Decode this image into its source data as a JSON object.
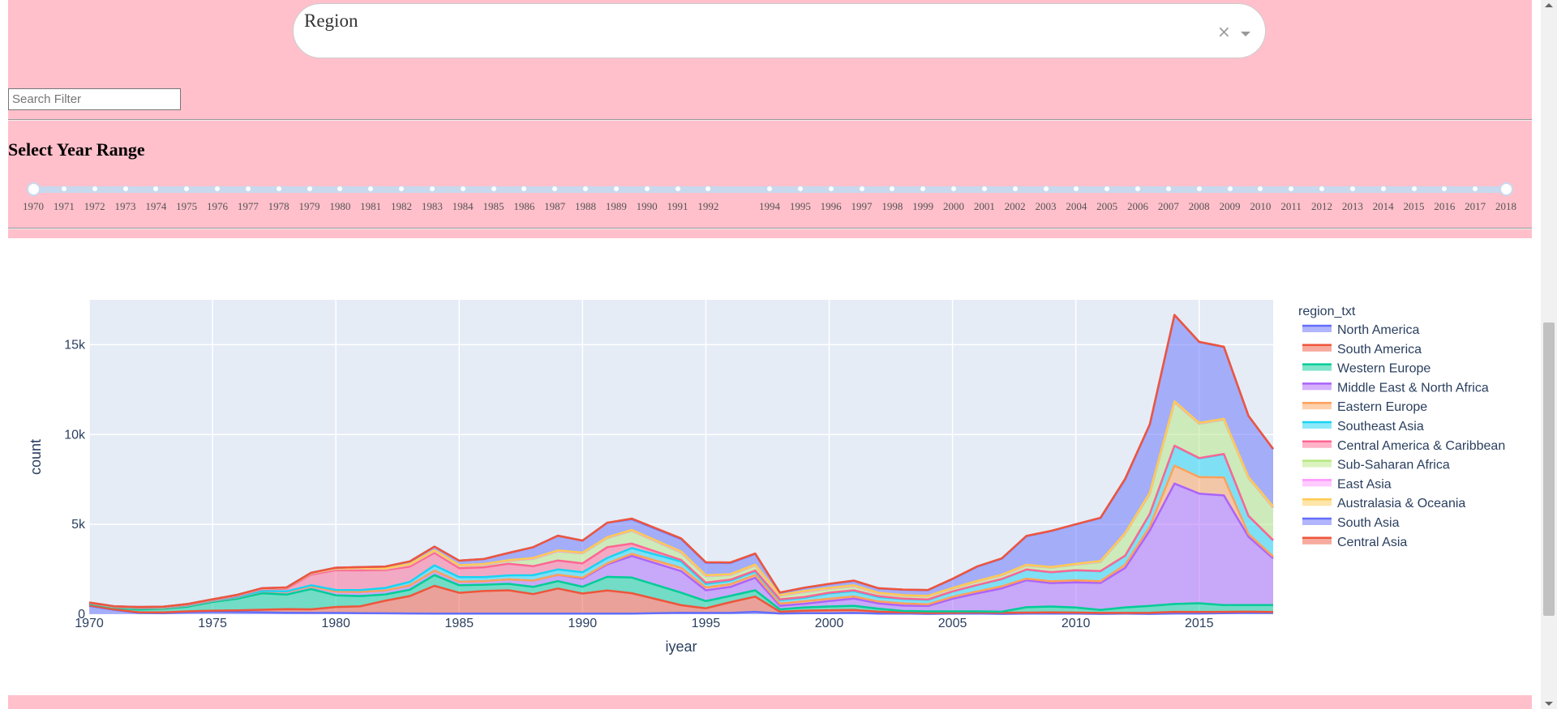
{
  "region_dropdown": {
    "placeholder": "Region",
    "clear_icon": "×",
    "chevron_icon": "chevron-down-icon"
  },
  "search": {
    "placeholder": "Search Filter",
    "value": ""
  },
  "year_range": {
    "title": "Select Year Range",
    "selected": [
      1970,
      2018
    ],
    "marks": [
      "1970",
      "1971",
      "1972",
      "1973",
      "1974",
      "1975",
      "1976",
      "1977",
      "1978",
      "1979",
      "1980",
      "1981",
      "1982",
      "1983",
      "1984",
      "1985",
      "1986",
      "1987",
      "1988",
      "1989",
      "1990",
      "1991",
      "1992",
      "1994",
      "1995",
      "1996",
      "1997",
      "1998",
      "1999",
      "2000",
      "2001",
      "2002",
      "2003",
      "2004",
      "2005",
      "2006",
      "2007",
      "2008",
      "2009",
      "2010",
      "2011",
      "2012",
      "2013",
      "2014",
      "2015",
      "2016",
      "2017",
      "2018"
    ]
  },
  "colors": {
    "pink_background": "#ffc0cb",
    "plot_background": "#e5ecf6"
  },
  "chart_data": {
    "type": "area",
    "title": "",
    "xlabel": "iyear",
    "ylabel": "count",
    "xlim": [
      1970,
      2018
    ],
    "ylim": [
      0,
      17500
    ],
    "x_ticks": [
      "1970",
      "1975",
      "1980",
      "1985",
      "1990",
      "1995",
      "2000",
      "2005",
      "2010",
      "2015"
    ],
    "y_ticks": [
      {
        "value": 0,
        "label": "0"
      },
      {
        "value": 5000,
        "label": "5k"
      },
      {
        "value": 10000,
        "label": "10k"
      },
      {
        "value": 15000,
        "label": "15k"
      }
    ],
    "legend_title": "region_txt",
    "legend_position": "right",
    "grid": true,
    "x": [
      1970,
      1971,
      1972,
      1973,
      1974,
      1975,
      1976,
      1977,
      1978,
      1979,
      1980,
      1981,
      1982,
      1983,
      1984,
      1985,
      1986,
      1987,
      1988,
      1989,
      1990,
      1991,
      1992,
      1994,
      1995,
      1996,
      1997,
      1998,
      1999,
      2000,
      2001,
      2002,
      2003,
      2004,
      2005,
      2006,
      2007,
      2008,
      2009,
      2010,
      2011,
      2012,
      2013,
      2014,
      2015,
      2016,
      2017,
      2018
    ],
    "series": [
      {
        "name": "North America",
        "color": "#636efa",
        "values": [
          470,
          250,
          70,
          60,
          110,
          140,
          120,
          100,
          80,
          70,
          70,
          60,
          50,
          40,
          30,
          30,
          30,
          30,
          30,
          30,
          30,
          30,
          30,
          80,
          70,
          70,
          130,
          40,
          60,
          60,
          70,
          30,
          40,
          20,
          30,
          40,
          20,
          30,
          30,
          30,
          20,
          30,
          20,
          40,
          40,
          60,
          80,
          70
        ]
      },
      {
        "name": "South America",
        "color": "#ef553b",
        "values": [
          20,
          20,
          40,
          40,
          50,
          60,
          90,
          150,
          200,
          200,
          330,
          380,
          700,
          970,
          1550,
          1160,
          1260,
          1300,
          1090,
          1400,
          1120,
          1290,
          1140,
          420,
          260,
          600,
          850,
          100,
          140,
          160,
          170,
          110,
          60,
          50,
          50,
          60,
          60,
          60,
          70,
          60,
          50,
          40,
          60,
          90,
          80,
          70,
          60,
          50
        ]
      },
      {
        "name": "Western Europe",
        "color": "#00cc96",
        "values": [
          80,
          100,
          150,
          200,
          260,
          480,
          650,
          920,
          810,
          1130,
          650,
          570,
          350,
          350,
          600,
          420,
          350,
          360,
          400,
          410,
          380,
          760,
          870,
          700,
          400,
          350,
          350,
          130,
          180,
          210,
          230,
          160,
          80,
          90,
          80,
          60,
          60,
          300,
          330,
          280,
          170,
          310,
          380,
          440,
          490,
          380,
          370,
          390
        ]
      },
      {
        "name": "Middle East & North Africa",
        "color": "#ab63fa",
        "values": [
          40,
          30,
          80,
          50,
          60,
          60,
          80,
          100,
          150,
          150,
          200,
          230,
          220,
          240,
          240,
          200,
          200,
          250,
          350,
          350,
          450,
          700,
          1200,
          1200,
          600,
          500,
          700,
          200,
          200,
          300,
          400,
          300,
          300,
          300,
          700,
          1000,
          1300,
          1500,
          1300,
          1400,
          1500,
          2200,
          4200,
          6700,
          6100,
          6100,
          3800,
          2600
        ]
      },
      {
        "name": "Eastern Europe",
        "color": "#ffa15a",
        "values": [
          0,
          0,
          0,
          0,
          0,
          0,
          0,
          0,
          0,
          0,
          0,
          0,
          0,
          0,
          0,
          0,
          0,
          0,
          0,
          0,
          50,
          50,
          120,
          180,
          160,
          150,
          150,
          120,
          140,
          130,
          120,
          110,
          120,
          90,
          100,
          110,
          110,
          90,
          100,
          120,
          100,
          170,
          220,
          1000,
          920,
          1000,
          150,
          100
        ]
      },
      {
        "name": "Southeast Asia",
        "color": "#19d3f3",
        "values": [
          10,
          10,
          20,
          20,
          20,
          20,
          20,
          20,
          30,
          60,
          100,
          100,
          140,
          200,
          300,
          250,
          220,
          220,
          300,
          300,
          300,
          300,
          320,
          350,
          200,
          200,
          200,
          200,
          200,
          300,
          300,
          250,
          250,
          250,
          300,
          350,
          400,
          500,
          500,
          550,
          550,
          500,
          700,
          1100,
          1050,
          1300,
          1000,
          900
        ]
      },
      {
        "name": "Central America & Caribbean",
        "color": "#ff6692",
        "values": [
          10,
          10,
          20,
          20,
          30,
          30,
          60,
          100,
          150,
          600,
          1100,
          1100,
          1000,
          850,
          700,
          500,
          550,
          650,
          500,
          500,
          500,
          600,
          250,
          90,
          70,
          50,
          50,
          40,
          40,
          40,
          40,
          40,
          20,
          20,
          10,
          10,
          10,
          10,
          10,
          10,
          10,
          10,
          10,
          10,
          10,
          10,
          10,
          10
        ]
      },
      {
        "name": "Sub-Saharan Africa",
        "color": "#b6e880",
        "values": [
          10,
          10,
          10,
          10,
          20,
          20,
          30,
          30,
          40,
          60,
          70,
          90,
          60,
          100,
          100,
          120,
          130,
          150,
          400,
          500,
          550,
          500,
          700,
          400,
          350,
          250,
          270,
          180,
          270,
          200,
          220,
          150,
          150,
          160,
          150,
          180,
          200,
          210,
          240,
          300,
          500,
          1200,
          1100,
          2400,
          1900,
          1900,
          2100,
          1800
        ]
      },
      {
        "name": "East Asia",
        "color": "#ff97ff",
        "values": [
          10,
          10,
          10,
          10,
          10,
          10,
          10,
          10,
          10,
          10,
          10,
          10,
          10,
          20,
          20,
          20,
          20,
          20,
          30,
          30,
          20,
          30,
          30,
          30,
          30,
          30,
          30,
          30,
          30,
          30,
          30,
          20,
          20,
          20,
          20,
          20,
          20,
          30,
          30,
          30,
          30,
          30,
          30,
          30,
          30,
          30,
          30,
          30
        ]
      },
      {
        "name": "Australasia & Oceania",
        "color": "#fecb52",
        "values": [
          0,
          0,
          0,
          10,
          10,
          10,
          10,
          10,
          10,
          10,
          20,
          20,
          20,
          20,
          20,
          30,
          30,
          30,
          30,
          30,
          30,
          30,
          30,
          40,
          30,
          30,
          30,
          30,
          30,
          30,
          30,
          20,
          20,
          20,
          20,
          20,
          20,
          20,
          20,
          20,
          30,
          30,
          40,
          40,
          30,
          30,
          30,
          40
        ]
      },
      {
        "name": "South Asia",
        "color": "#636efa",
        "values": [
          0,
          0,
          0,
          0,
          0,
          0,
          10,
          10,
          10,
          20,
          40,
          60,
          100,
          150,
          200,
          250,
          280,
          400,
          600,
          820,
          670,
          800,
          600,
          700,
          700,
          630,
          600,
          130,
          180,
          220,
          250,
          250,
          300,
          320,
          500,
          800,
          900,
          1600,
          2000,
          2200,
          2400,
          3000,
          3800,
          4800,
          4500,
          4000,
          3400,
          3200
        ]
      },
      {
        "name": "Central Asia",
        "color": "#ef553b",
        "values": [
          0,
          0,
          0,
          0,
          0,
          0,
          0,
          0,
          0,
          0,
          0,
          0,
          0,
          0,
          0,
          0,
          0,
          0,
          0,
          0,
          0,
          0,
          30,
          30,
          20,
          20,
          20,
          10,
          10,
          10,
          10,
          10,
          10,
          10,
          10,
          10,
          10,
          10,
          10,
          10,
          10,
          20,
          10,
          10,
          10,
          10,
          10,
          10
        ]
      }
    ]
  }
}
